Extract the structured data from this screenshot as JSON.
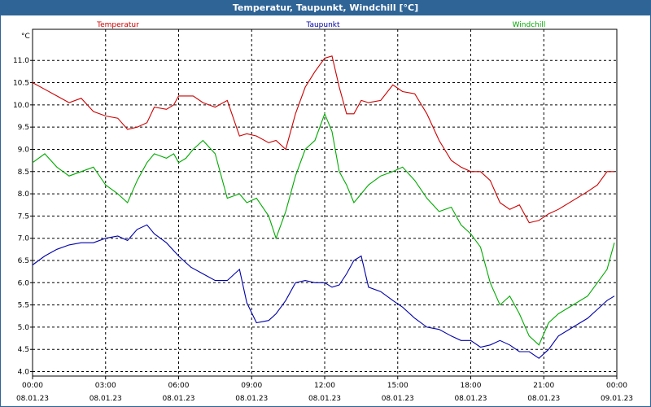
{
  "window": {
    "title": "Temperatur, Taupunkt, Windchill [°C]"
  },
  "chart_data": {
    "type": "line",
    "title": "Temperatur, Taupunkt, Windchill [°C]",
    "ylabel": "°C",
    "xlabel": "",
    "ylim": [
      3.9,
      11.7
    ],
    "y_ticks": [
      "4.0",
      "4.5",
      "5.0",
      "5.5",
      "6.0",
      "6.5",
      "7.0",
      "7.5",
      "8.0",
      "8.5",
      "9.0",
      "9.5",
      "10.0",
      "10.5",
      "11.0"
    ],
    "x_range_hours": [
      0,
      24
    ],
    "x_ticks": [
      {
        "time": "00:00",
        "date": "08.01.23"
      },
      {
        "time": "03:00",
        "date": "08.01.23"
      },
      {
        "time": "06:00",
        "date": "08.01.23"
      },
      {
        "time": "09:00",
        "date": "08.01.23"
      },
      {
        "time": "12:00",
        "date": "08.01.23"
      },
      {
        "time": "15:00",
        "date": "08.01.23"
      },
      {
        "time": "18:00",
        "date": "08.01.23"
      },
      {
        "time": "21:00",
        "date": "08.01.23"
      },
      {
        "time": "00:00",
        "date": "09.01.23"
      }
    ],
    "grid": true,
    "legend_placement": "top",
    "series": [
      {
        "name": "Temperatur",
        "color": "#cc0000",
        "x": [
          0,
          0.5,
          1,
          1.5,
          2,
          2.5,
          3,
          3.5,
          3.9,
          4.3,
          4.7,
          5,
          5.5,
          5.8,
          6,
          6.3,
          6.6,
          7,
          7.5,
          8,
          8.5,
          8.8,
          9.2,
          9.7,
          10,
          10.4,
          10.8,
          11.2,
          11.6,
          12,
          12.3,
          12.6,
          12.9,
          13.2,
          13.5,
          13.8,
          14.3,
          14.8,
          15.2,
          15.7,
          16.2,
          16.7,
          17.2,
          17.6,
          18,
          18.4,
          18.8,
          19.2,
          19.6,
          20,
          20.4,
          20.8,
          21.2,
          21.6,
          22.2,
          22.8,
          23.2,
          23.6,
          23.9
        ],
        "values": [
          10.5,
          10.35,
          10.2,
          10.05,
          10.15,
          9.85,
          9.75,
          9.7,
          9.45,
          9.5,
          9.6,
          9.95,
          9.9,
          10.0,
          10.2,
          10.2,
          10.2,
          10.05,
          9.95,
          10.1,
          9.3,
          9.35,
          9.3,
          9.15,
          9.2,
          9.0,
          9.8,
          10.4,
          10.75,
          11.05,
          11.1,
          10.4,
          9.8,
          9.8,
          10.1,
          10.05,
          10.1,
          10.45,
          10.3,
          10.25,
          9.8,
          9.2,
          8.75,
          8.6,
          8.5,
          8.5,
          8.3,
          7.8,
          7.65,
          7.75,
          7.35,
          7.4,
          7.55,
          7.65,
          7.85,
          8.05,
          8.2,
          8.5,
          8.5
        ]
      },
      {
        "name": "Taupunkt",
        "color": "#0000aa",
        "x": [
          0,
          0.5,
          1,
          1.5,
          2,
          2.5,
          3,
          3.5,
          3.9,
          4.3,
          4.7,
          5,
          5.5,
          6,
          6.5,
          7,
          7.5,
          8,
          8.5,
          8.8,
          9.2,
          9.7,
          10,
          10.4,
          10.8,
          11.2,
          11.6,
          12,
          12.3,
          12.6,
          12.9,
          13.2,
          13.5,
          13.8,
          14.3,
          14.8,
          15.2,
          15.7,
          16.2,
          16.7,
          17.2,
          17.6,
          18,
          18.4,
          18.8,
          19.2,
          19.6,
          20,
          20.4,
          20.8,
          21.2,
          21.6,
          22.2,
          22.8,
          23.2,
          23.6,
          23.9
        ],
        "values": [
          6.4,
          6.6,
          6.75,
          6.85,
          6.9,
          6.9,
          7.0,
          7.05,
          6.95,
          7.2,
          7.3,
          7.1,
          6.9,
          6.6,
          6.35,
          6.2,
          6.05,
          6.05,
          6.3,
          5.55,
          5.1,
          5.15,
          5.3,
          5.6,
          6.0,
          6.05,
          6.0,
          6.0,
          5.9,
          5.95,
          6.2,
          6.5,
          6.6,
          5.9,
          5.8,
          5.6,
          5.45,
          5.2,
          5.0,
          4.95,
          4.8,
          4.7,
          4.7,
          4.55,
          4.6,
          4.7,
          4.6,
          4.45,
          4.45,
          4.3,
          4.5,
          4.8,
          5.0,
          5.2,
          5.4,
          5.6,
          5.7
        ]
      },
      {
        "name": "Windchill",
        "color": "#00aa00",
        "x": [
          0,
          0.5,
          1,
          1.5,
          2,
          2.5,
          3,
          3.5,
          3.9,
          4.3,
          4.7,
          5,
          5.5,
          5.8,
          6,
          6.3,
          6.6,
          7,
          7.5,
          8,
          8.5,
          8.8,
          9.2,
          9.7,
          10,
          10.4,
          10.8,
          11.2,
          11.6,
          12,
          12.3,
          12.6,
          12.9,
          13.2,
          13.5,
          13.8,
          14.3,
          14.8,
          15.2,
          15.7,
          16.2,
          16.7,
          17.2,
          17.6,
          18,
          18.4,
          18.8,
          19.2,
          19.6,
          20,
          20.4,
          20.8,
          21.2,
          21.6,
          22.2,
          22.8,
          23.2,
          23.6,
          23.9
        ],
        "values": [
          8.7,
          8.9,
          8.6,
          8.4,
          8.5,
          8.6,
          8.2,
          8.0,
          7.8,
          8.3,
          8.7,
          8.9,
          8.8,
          8.9,
          8.7,
          8.8,
          9.0,
          9.2,
          8.9,
          7.9,
          8.0,
          7.8,
          7.9,
          7.5,
          7.0,
          7.6,
          8.4,
          9.0,
          9.2,
          9.8,
          9.4,
          8.5,
          8.2,
          7.8,
          8.0,
          8.2,
          8.4,
          8.5,
          8.6,
          8.3,
          7.9,
          7.6,
          7.7,
          7.3,
          7.1,
          6.8,
          6.0,
          5.5,
          5.7,
          5.3,
          4.8,
          4.6,
          5.1,
          5.3,
          5.5,
          5.7,
          6.0,
          6.3,
          6.9
        ]
      }
    ]
  }
}
